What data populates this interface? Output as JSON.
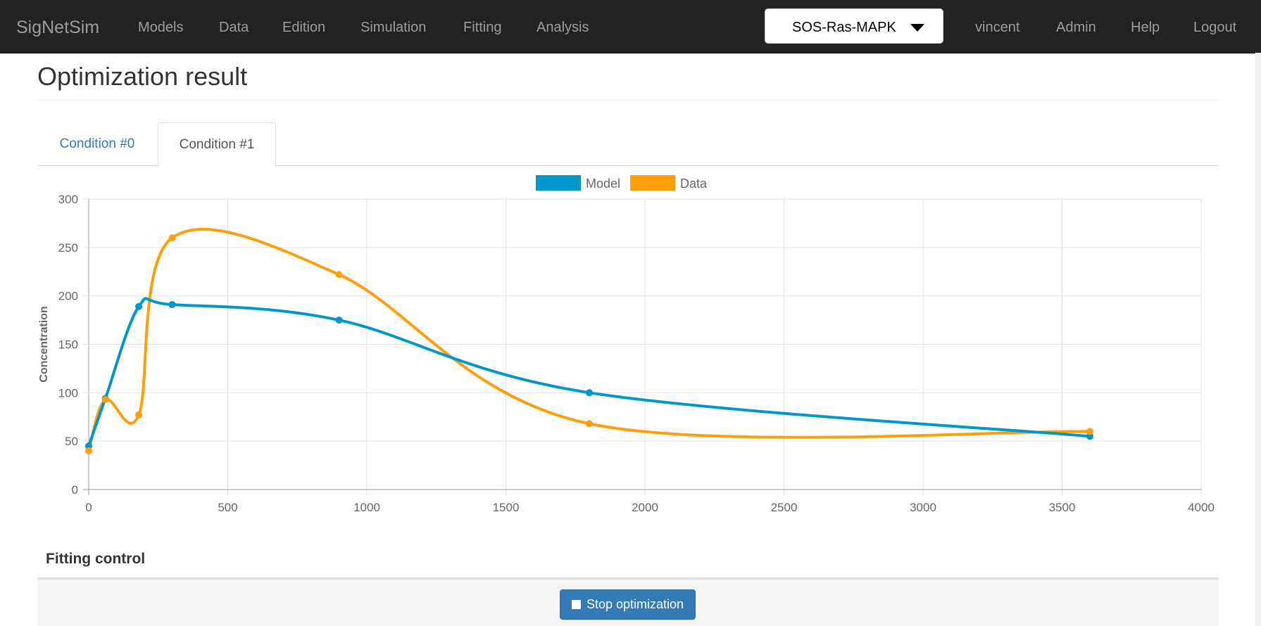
{
  "navbar": {
    "brand": "SigNetSim",
    "links": [
      "Models",
      "Data",
      "Edition",
      "Simulation",
      "Fitting",
      "Analysis"
    ],
    "project_select": {
      "selected": "SOS-Ras-MAPK"
    },
    "user": "vincent",
    "right_links": [
      "Admin",
      "Help",
      "Logout"
    ]
  },
  "page": {
    "title": "Optimization result"
  },
  "tabs": [
    {
      "label": "Condition #0",
      "active": false
    },
    {
      "label": "Condition #1",
      "active": true
    }
  ],
  "chart_data": {
    "type": "line",
    "title": "",
    "xlabel": "",
    "ylabel": "Concentration",
    "xlim": [
      0,
      4000
    ],
    "ylim": [
      0,
      300
    ],
    "x_ticks": [
      "0",
      "500",
      "1000",
      "1500",
      "2000",
      "2500",
      "3000",
      "3500",
      "4000"
    ],
    "y_ticks": [
      "0",
      "50",
      "100",
      "150",
      "200",
      "250",
      "300"
    ],
    "grid": true,
    "legend_position": "top",
    "series": [
      {
        "name": "Model",
        "color": "#0097cc",
        "points": [
          [
            0,
            45
          ],
          [
            60,
            94
          ],
          [
            180,
            189
          ],
          [
            300,
            191
          ],
          [
            900,
            175
          ],
          [
            1800,
            100
          ],
          [
            3600,
            55
          ]
        ]
      },
      {
        "name": "Data",
        "color": "#ff9e0a",
        "points": [
          [
            0,
            40
          ],
          [
            60,
            93
          ],
          [
            180,
            77
          ],
          [
            300,
            260
          ],
          [
            900,
            222
          ],
          [
            1800,
            68
          ],
          [
            3600,
            60
          ]
        ]
      }
    ]
  },
  "fitting_control": {
    "heading": "Fitting control",
    "stop_button": "Stop optimization"
  }
}
